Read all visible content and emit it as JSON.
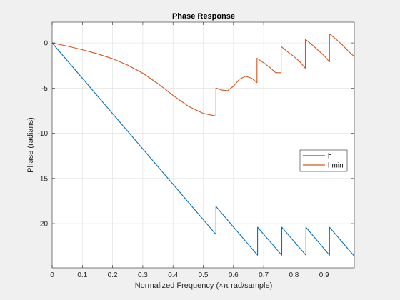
{
  "chart_data": {
    "type": "line",
    "title": "Phase Response",
    "xlabel": "Normalized Frequency (×π rad/sample)",
    "ylabel": "Phase (radians)",
    "xlim": [
      0,
      1
    ],
    "ylim": [
      -24.9,
      2.3
    ],
    "xticks": [
      0,
      0.1,
      0.2,
      0.3,
      0.4,
      0.5,
      0.6,
      0.7,
      0.8,
      0.9
    ],
    "xtick_labels": [
      "0",
      "0.1",
      "0.2",
      "0.3",
      "0.4",
      "0.5",
      "0.6",
      "0.7",
      "0.8",
      "0.9"
    ],
    "yticks": [
      0,
      -5,
      -10,
      -15,
      -20
    ],
    "ytick_labels": [
      "0",
      "-5",
      "-10",
      "-15",
      "-20"
    ],
    "grid": true,
    "legend_position": "right",
    "series": [
      {
        "name": "h",
        "color": "#0072bd",
        "x": [
          0,
          0.542,
          0.542,
          0.68,
          0.68,
          0.76,
          0.76,
          0.84,
          0.84,
          0.918,
          0.918,
          1.0
        ],
        "y": [
          0,
          -21.2,
          -18.1,
          -23.5,
          -20.4,
          -23.5,
          -20.4,
          -23.5,
          -20.4,
          -23.5,
          -20.4,
          -23.6
        ]
      },
      {
        "name": "hmin",
        "color": "#d95319",
        "x": [
          0,
          0.05,
          0.1,
          0.15,
          0.2,
          0.25,
          0.3,
          0.35,
          0.4,
          0.45,
          0.5,
          0.542,
          0.542,
          0.56,
          0.58,
          0.6,
          0.62,
          0.64,
          0.66,
          0.678,
          0.678,
          0.7,
          0.72,
          0.74,
          0.758,
          0.758,
          0.78,
          0.8,
          0.82,
          0.838,
          0.838,
          0.86,
          0.88,
          0.9,
          0.918,
          0.918,
          0.94,
          0.96,
          0.98,
          1.0
        ],
        "y": [
          0,
          -0.35,
          -0.75,
          -1.2,
          -1.75,
          -2.45,
          -3.35,
          -4.5,
          -5.8,
          -7.0,
          -7.8,
          -8.1,
          -5.0,
          -5.2,
          -5.3,
          -4.8,
          -4.0,
          -3.7,
          -3.9,
          -4.4,
          -1.7,
          -2.2,
          -2.7,
          -3.3,
          -3.3,
          -0.4,
          -1.0,
          -1.5,
          -2.1,
          -2.8,
          0.4,
          -0.2,
          -0.8,
          -1.4,
          -2.1,
          1.0,
          0.4,
          -0.2,
          -0.9,
          -1.5
        ]
      }
    ]
  }
}
